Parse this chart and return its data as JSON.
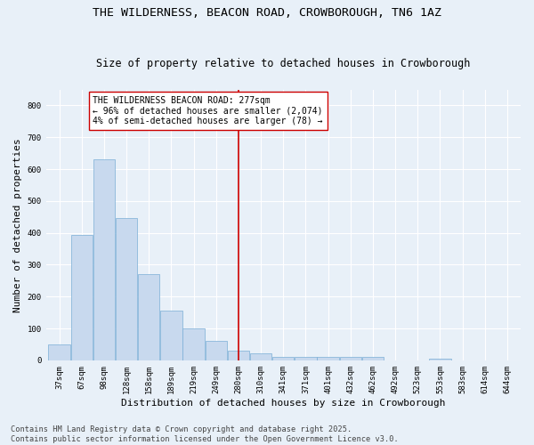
{
  "title_line1": "THE WILDERNESS, BEACON ROAD, CROWBOROUGH, TN6 1AZ",
  "title_line2": "Size of property relative to detached houses in Crowborough",
  "xlabel": "Distribution of detached houses by size in Crowborough",
  "ylabel": "Number of detached properties",
  "categories": [
    "37sqm",
    "67sqm",
    "98sqm",
    "128sqm",
    "158sqm",
    "189sqm",
    "219sqm",
    "249sqm",
    "280sqm",
    "310sqm",
    "341sqm",
    "371sqm",
    "401sqm",
    "432sqm",
    "462sqm",
    "492sqm",
    "523sqm",
    "553sqm",
    "583sqm",
    "614sqm",
    "644sqm"
  ],
  "values": [
    50,
    393,
    630,
    447,
    270,
    155,
    100,
    60,
    30,
    22,
    12,
    10,
    10,
    12,
    10,
    0,
    0,
    5,
    0,
    0,
    0
  ],
  "bar_color": "#c8d9ee",
  "bar_edge_color": "#7aaed6",
  "bar_width": 0.97,
  "vline_index": 8,
  "vline_color": "#cc0000",
  "annotation_text": "THE WILDERNESS BEACON ROAD: 277sqm\n← 96% of detached houses are smaller (2,074)\n4% of semi-detached houses are larger (78) →",
  "annotation_box_color": "#ffffff",
  "annotation_box_edge": "#cc0000",
  "ylim": [
    0,
    850
  ],
  "yticks": [
    0,
    100,
    200,
    300,
    400,
    500,
    600,
    700,
    800
  ],
  "background_color": "#e8f0f8",
  "grid_color": "#ffffff",
  "footer_line1": "Contains HM Land Registry data © Crown copyright and database right 2025.",
  "footer_line2": "Contains public sector information licensed under the Open Government Licence v3.0.",
  "title_fontsize": 9.5,
  "subtitle_fontsize": 8.5,
  "axis_label_fontsize": 8,
  "tick_fontsize": 6.5,
  "annotation_fontsize": 7,
  "footer_fontsize": 6.2
}
